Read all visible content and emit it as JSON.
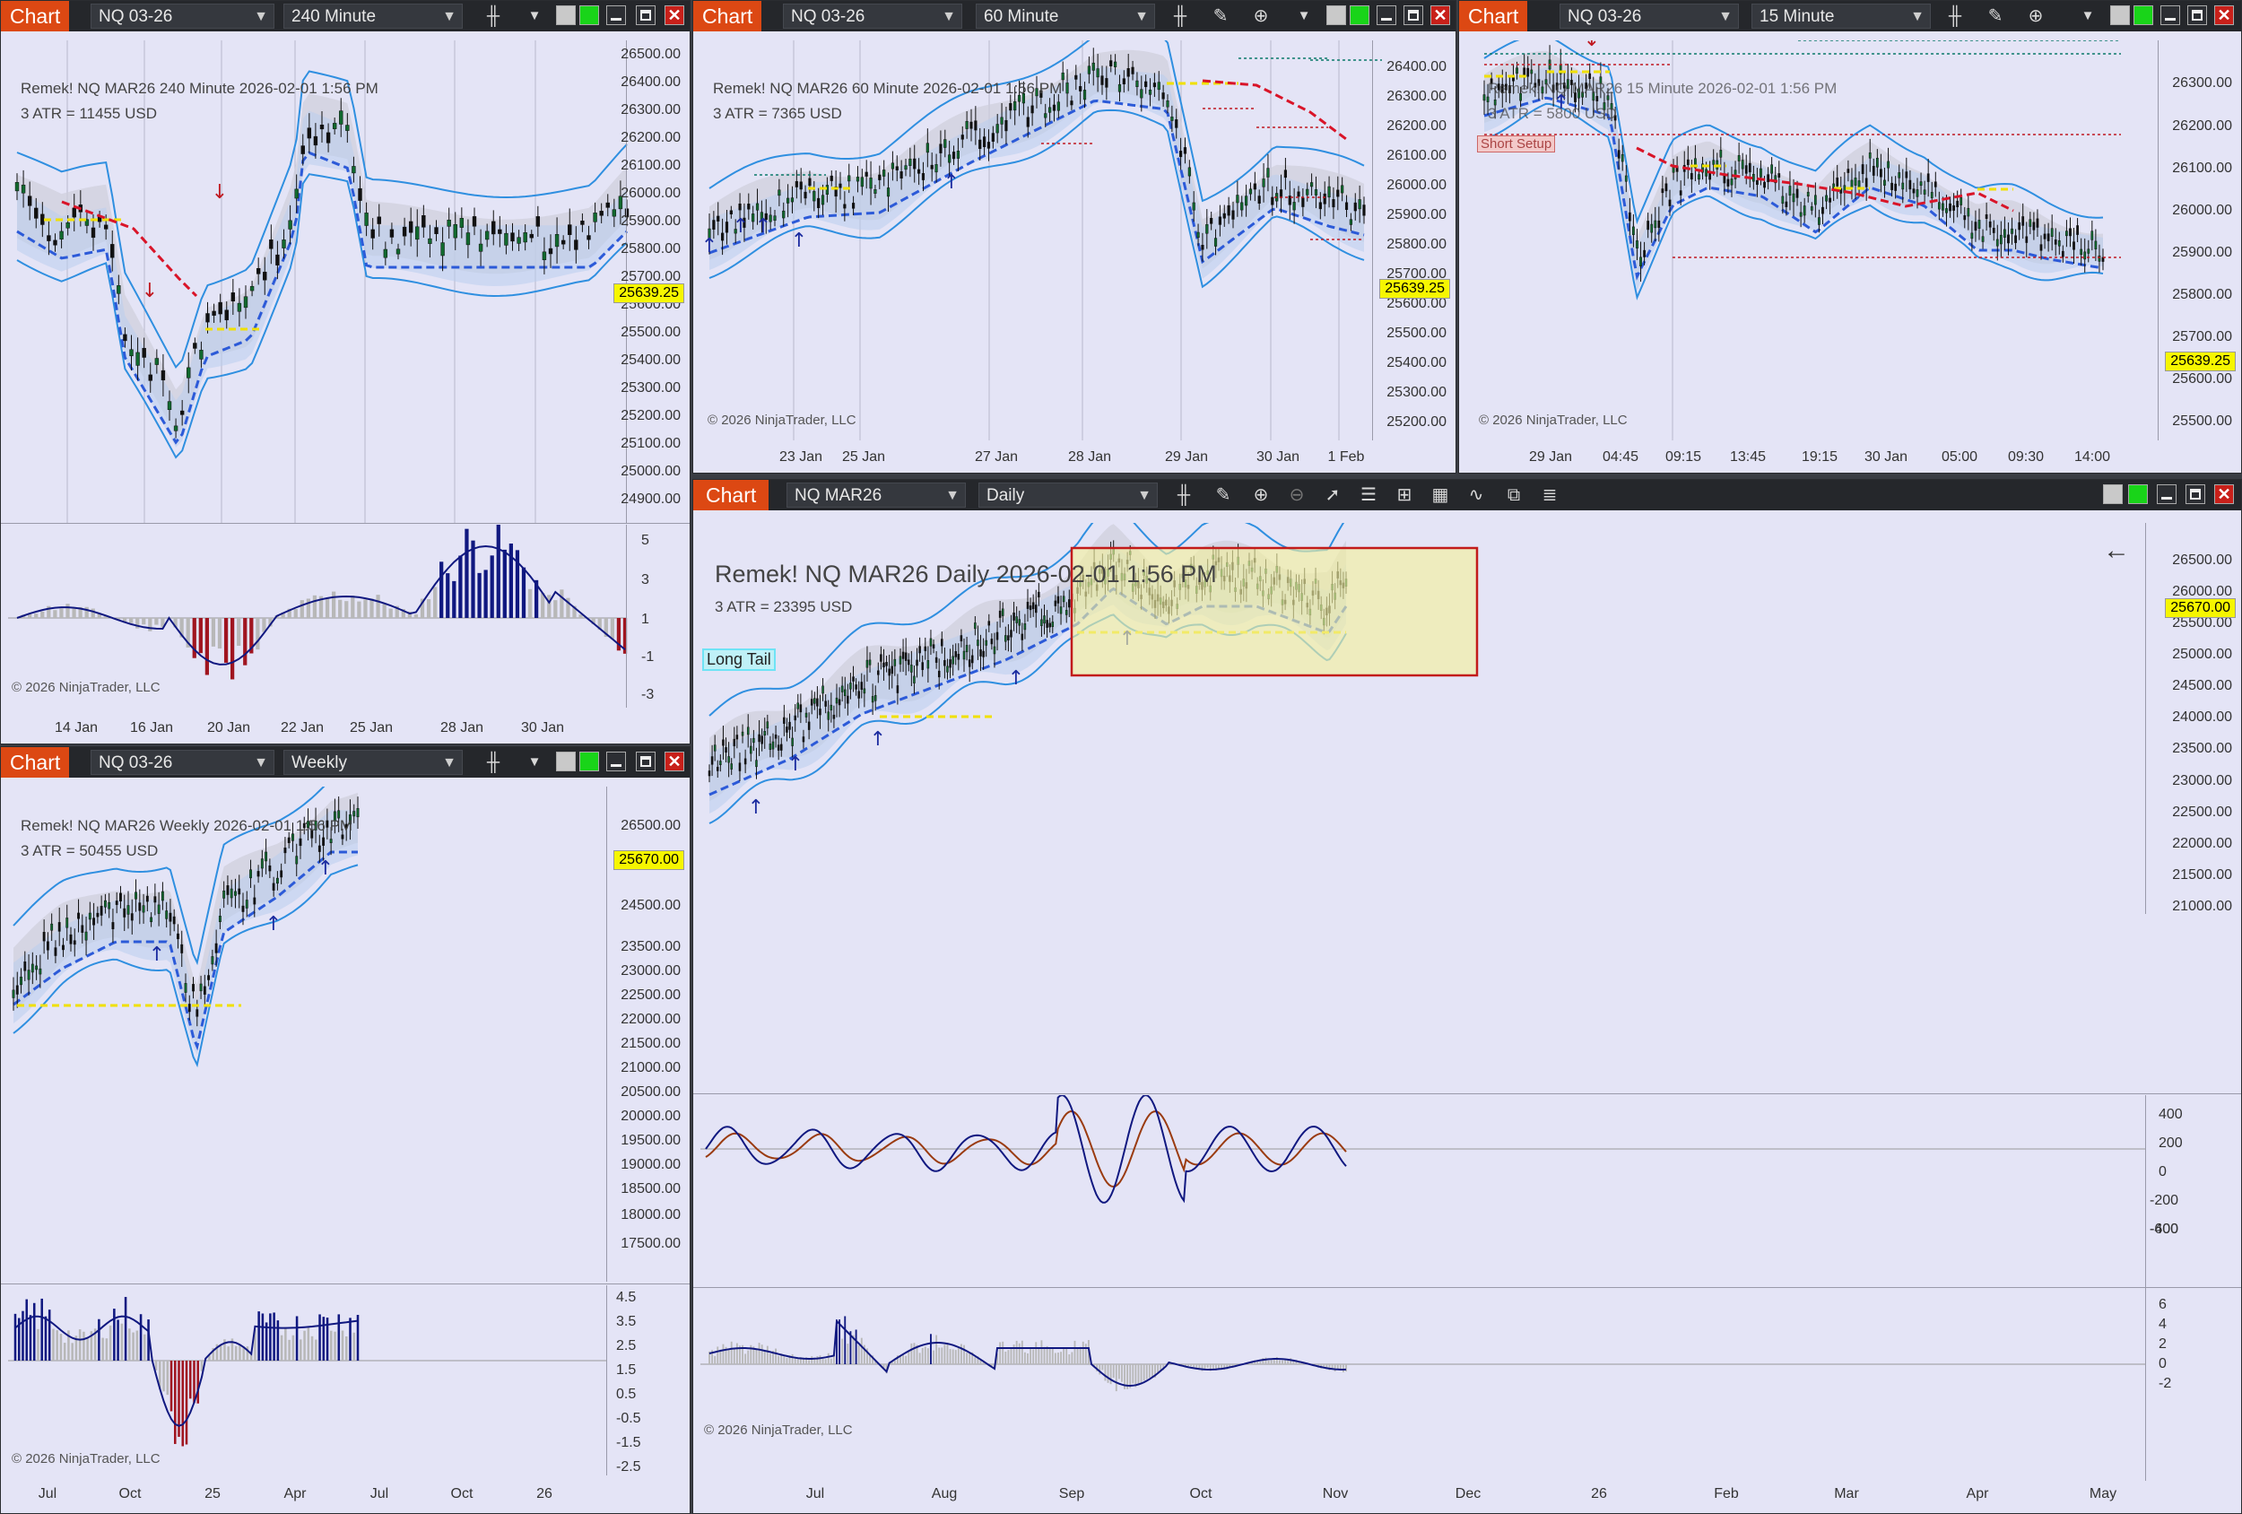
{
  "colors": {
    "up_candle": "#11692e",
    "down_candle": "#111111",
    "band": "#2f8fe0",
    "trend_up": "#2c5ad8",
    "trend_dn": "#d91428",
    "pivot": "#f0e000",
    "hist_up": "#101880",
    "hist_dn": "#a01520",
    "hist_neutral": "#b8b8b8",
    "osc_fast": "#101880",
    "osc_slow": "#9a3b10",
    "signal_up": "#1c2ca0",
    "signal_dn": "#c01820"
  },
  "toolbar": {
    "chart_label": "Chart",
    "tool_icons": [
      "bar-style-icon",
      "pencil-icon",
      "zoom-in-icon",
      "zoom-out-icon",
      "pointer-icon",
      "properties-icon",
      "data-box-icon",
      "chart-trader-icon",
      "indicators-icon",
      "strategies-icon",
      "list-icon"
    ]
  },
  "w240": {
    "instrument": "NQ 03-26",
    "interval": "240 Minute",
    "header": "Remek!  NQ MAR26  240 Minute  2026-02-01 1:56 PM",
    "atr": "3 ATR = 11455 USD",
    "price_label": "25639.25",
    "copyright": "© 2026 NinjaTrader, LLC",
    "y_labels": [
      "26500.00",
      "26400.00",
      "26300.00",
      "26200.00",
      "26100.00",
      "26000.00",
      "25900.00",
      "25800.00",
      "25700.00",
      "25600.00",
      "25500.00",
      "25400.00",
      "25300.00",
      "25200.00",
      "25100.00",
      "25000.00",
      "24900.00"
    ],
    "osc_labels": [
      "5",
      "3",
      "1",
      "-1",
      "-3"
    ],
    "x_labels": [
      "14 Jan",
      "16 Jan",
      "20 Jan",
      "22 Jan",
      "25 Jan",
      "28 Jan",
      "30 Jan"
    ]
  },
  "w60": {
    "instrument": "NQ 03-26",
    "interval": "60 Minute",
    "header": "Remek!  NQ MAR26  60 Minute  2026-02-01 1:56 PM",
    "atr": "3 ATR = 7365 USD",
    "price_label": "25639.25",
    "copyright": "© 2026 NinjaTrader, LLC",
    "y_labels": [
      "26400.00",
      "26300.00",
      "26200.00",
      "26100.00",
      "26000.00",
      "25900.00",
      "25800.00",
      "25700.00",
      "25600.00",
      "25500.00",
      "25400.00",
      "25300.00",
      "25200.00"
    ],
    "x_labels": [
      "23 Jan",
      "25 Jan",
      "27 Jan",
      "28 Jan",
      "29 Jan",
      "30 Jan",
      "1 Feb"
    ]
  },
  "w15": {
    "instrument": "NQ 03-26",
    "interval": "15 Minute",
    "header": "Remek!  NQ MAR26  15 Minute  2026-02-01 1:56 PM",
    "atr": "3 ATR = 5800 USD",
    "setup_tag": "Short Setup",
    "price_label": "25639.25",
    "copyright": "© 2026 NinjaTrader, LLC",
    "y_labels": [
      "26300.00",
      "26200.00",
      "26100.00",
      "26000.00",
      "25900.00",
      "25800.00",
      "25700.00",
      "25600.00",
      "25500.00"
    ],
    "x_labels": [
      "29 Jan",
      "04:45",
      "09:15",
      "13:45",
      "19:15",
      "30 Jan",
      "05:00",
      "09:30",
      "14:00"
    ]
  },
  "wWeek": {
    "instrument": "NQ 03-26",
    "interval": "Weekly",
    "header": "Remek!  NQ MAR26  Weekly  2026-02-01 1:56 PM",
    "atr": "3 ATR = 50455 USD",
    "price_label": "25670.00",
    "copyright": "© 2026 NinjaTrader, LLC",
    "y_labels": [
      "26500.00",
      "24500.00",
      "23500.00",
      "23000.00",
      "22500.00",
      "22000.00",
      "21500.00",
      "21000.00",
      "20500.00",
      "20000.00",
      "19500.00",
      "19000.00",
      "18500.00",
      "18000.00",
      "17500.00"
    ],
    "osc_labels": [
      "4.5",
      "3.5",
      "2.5",
      "1.5",
      "0.5",
      "-0.5",
      "-1.5",
      "-2.5"
    ],
    "x_labels": [
      "Jul",
      "Oct",
      "25",
      "Apr",
      "Jul",
      "Oct",
      "26"
    ]
  },
  "wDaily": {
    "instrument": "NQ MAR26",
    "interval": "Daily",
    "header": "Remek!  NQ MAR26  Daily  2026-02-01 1:56 PM",
    "atr": "3 ATR = 23395 USD",
    "tag": "Long Tail",
    "price_label": "25670.00",
    "copyright": "© 2026 NinjaTrader, LLC",
    "y_labels": [
      "26500.00",
      "26000.00",
      "25500.00",
      "25000.00",
      "24500.00",
      "24000.00",
      "23500.00",
      "23000.00",
      "22500.00",
      "22000.00",
      "21500.00",
      "21000.00"
    ],
    "osc1_labels": [
      "400",
      "200",
      "0",
      "-200",
      "-400",
      "-600"
    ],
    "osc2_labels": [
      "6",
      "4",
      "2",
      "0",
      "-2"
    ],
    "x_labels": [
      "Jul",
      "Aug",
      "Sep",
      "Oct",
      "Nov",
      "Dec",
      "26",
      "Feb",
      "Mar",
      "Apr",
      "May"
    ]
  }
}
